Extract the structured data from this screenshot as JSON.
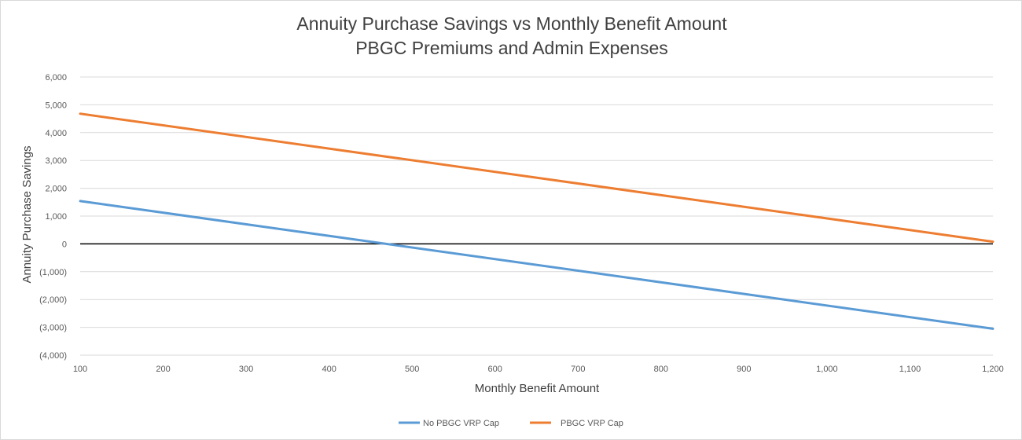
{
  "chart_data": {
    "type": "line",
    "title": "Annuity Purchase Savings vs Monthly Benefit Amount",
    "subtitle": "PBGC Premiums and Admin Expenses",
    "xlabel": "Monthly Benefit Amount",
    "ylabel": "Annuity Purchase Savings",
    "xlim": [
      100,
      1200
    ],
    "ylim": [
      -4000,
      6000
    ],
    "x_ticks": [
      100,
      200,
      300,
      400,
      500,
      600,
      700,
      800,
      900,
      1000,
      1100,
      1200
    ],
    "x_tick_labels": [
      "100",
      "200",
      "300",
      "400",
      "500",
      "600",
      "700",
      "800",
      "900",
      "1,000",
      "1,100",
      "1,200"
    ],
    "y_ticks": [
      6000,
      5000,
      4000,
      3000,
      2000,
      1000,
      0,
      -1000,
      -2000,
      -3000,
      -4000
    ],
    "y_tick_labels": [
      "6,000",
      "5,000",
      "4,000",
      "3,000",
      "2,000",
      "1,000",
      "0",
      "(1,000)",
      "(2,000)",
      "(3,000)",
      "(4,000)"
    ],
    "grid": true,
    "zero_line": true,
    "legend_position": "bottom",
    "series": [
      {
        "name": "No PBGC VRP Cap",
        "color": "#5b9bd5",
        "x": [
          100,
          1200
        ],
        "y": [
          1540,
          -3050
        ]
      },
      {
        "name": "PBGC VRP Cap",
        "color": "#ed7d31",
        "x": [
          100,
          1200
        ],
        "y": [
          4680,
          80
        ]
      }
    ]
  }
}
